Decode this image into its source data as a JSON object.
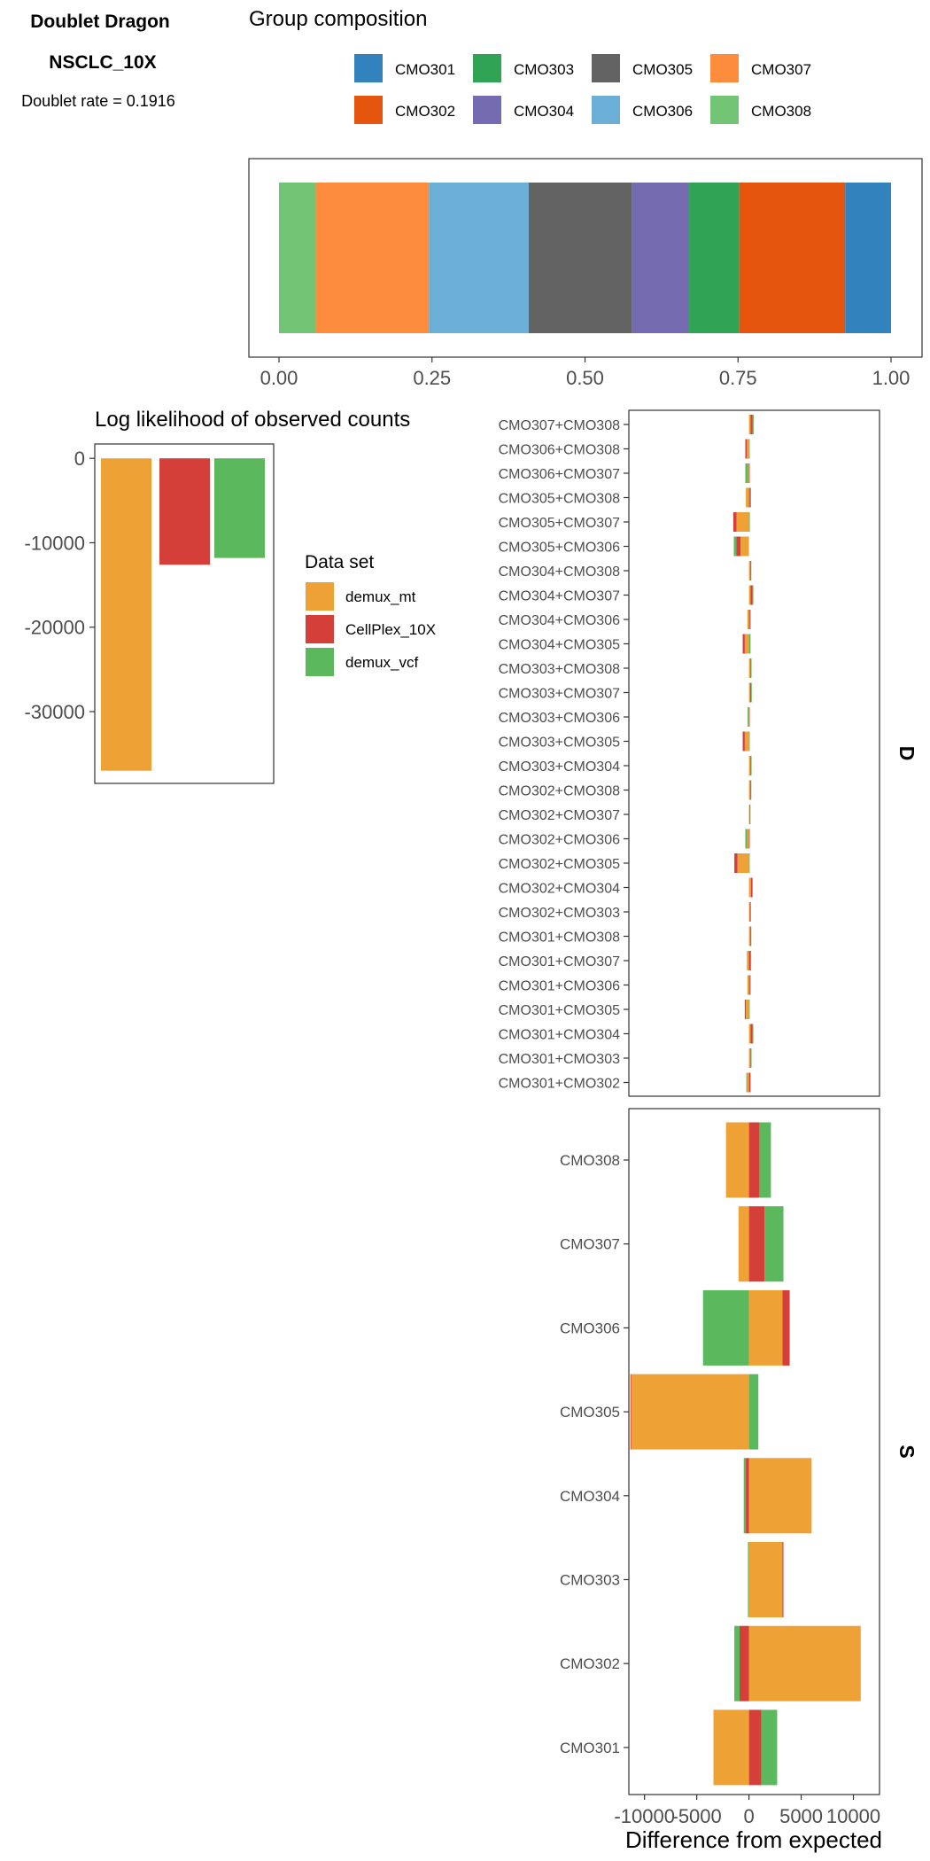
{
  "header": {
    "title": "Doublet Dragon",
    "dataset": "NSCLC_10X",
    "doublet_rate_label": "Doublet rate = 0.1916"
  },
  "colors": {
    "CMO301": "#3182bd",
    "CMO302": "#e6550d",
    "CMO303": "#31a354",
    "CMO304": "#756bb1",
    "CMO305": "#636363",
    "CMO306": "#6baed6",
    "CMO307": "#fd8d3c",
    "CMO308": "#74c476",
    "demux_mt": "#eea236",
    "CellPlex_10X": "#d43f3a",
    "demux_vcf": "#5cb85c"
  },
  "chart_data": [
    {
      "type": "bar",
      "orientation": "horizontal-stacked",
      "title": "Group composition",
      "legend": [
        "CMO301",
        "CMO303",
        "CMO305",
        "CMO307",
        "CMO302",
        "CMO304",
        "CMO306",
        "CMO308"
      ],
      "legend_position": "top",
      "xlim": [
        0,
        1
      ],
      "xticks": [
        "0.00",
        "0.25",
        "0.50",
        "0.75",
        "1.00"
      ],
      "segments": [
        {
          "group": "CMO308",
          "start": 0.0,
          "end": 0.06
        },
        {
          "group": "CMO307",
          "start": 0.06,
          "end": 0.245
        },
        {
          "group": "CMO306",
          "start": 0.245,
          "end": 0.408
        },
        {
          "group": "CMO305",
          "start": 0.408,
          "end": 0.577
        },
        {
          "group": "CMO304",
          "start": 0.577,
          "end": 0.67
        },
        {
          "group": "CMO303",
          "start": 0.67,
          "end": 0.752
        },
        {
          "group": "CMO302",
          "start": 0.752,
          "end": 0.925
        },
        {
          "group": "CMO301",
          "start": 0.925,
          "end": 1.0
        }
      ]
    },
    {
      "type": "bar",
      "title": "Log likelihood of observed counts",
      "categories": [
        "demux_mt",
        "CellPlex_10X",
        "demux_vcf"
      ],
      "values": [
        -37000,
        -12600,
        -11800
      ],
      "ylim": [
        -38500,
        1700
      ],
      "yticks": [
        "0",
        "-10000",
        "-20000",
        "-30000"
      ],
      "legend_title": "Data set",
      "legend": [
        "demux_mt",
        "CellPlex_10X",
        "demux_vcf"
      ],
      "legend_position": "right"
    },
    {
      "type": "bar",
      "orientation": "horizontal-stacked",
      "xlabel": "Difference from expected",
      "xlim": [
        -11500,
        12500
      ],
      "xticks": [
        "-10000",
        "-5000",
        "0",
        "5000",
        "10000"
      ],
      "panels": [
        {
          "strip": "D",
          "categories": [
            "CMO307+CMO308",
            "CMO306+CMO308",
            "CMO306+CMO307",
            "CMO305+CMO308",
            "CMO305+CMO307",
            "CMO305+CMO306",
            "CMO304+CMO308",
            "CMO304+CMO307",
            "CMO304+CMO306",
            "CMO304+CMO305",
            "CMO303+CMO308",
            "CMO303+CMO307",
            "CMO303+CMO306",
            "CMO303+CMO305",
            "CMO303+CMO304",
            "CMO302+CMO308",
            "CMO302+CMO307",
            "CMO302+CMO306",
            "CMO302+CMO305",
            "CMO302+CMO304",
            "CMO302+CMO303",
            "CMO301+CMO308",
            "CMO301+CMO307",
            "CMO301+CMO306",
            "CMO301+CMO305",
            "CMO301+CMO304",
            "CMO301+CMO303",
            "CMO301+CMO302"
          ],
          "series": [
            {
              "name": "demux_mt",
              "values": [
                150,
                -200,
                -100,
                -300,
                -1200,
                -800,
                100,
                150,
                -150,
                -400,
                120,
                100,
                -80,
                -400,
                120,
                100,
                50,
                -150,
                -1100,
                200,
                80,
                100,
                -200,
                -150,
                -300,
                150,
                100,
                -200
              ]
            },
            {
              "name": "CellPlex_10X",
              "values": [
                200,
                -150,
                50,
                100,
                -300,
                -400,
                60,
                200,
                100,
                -200,
                60,
                100,
                50,
                -200,
                50,
                60,
                30,
                50,
                -300,
                100,
                50,
                60,
                150,
                100,
                -100,
                200,
                80,
                150
              ]
            },
            {
              "name": "demux_vcf",
              "values": [
                100,
                50,
                -250,
                100,
                80,
                -250,
                60,
                50,
                50,
                150,
                40,
                40,
                -60,
                40,
                80,
                40,
                20,
                -200,
                50,
                50,
                40,
                40,
                60,
                50,
                40,
                60,
                40,
                -50
              ]
            }
          ]
        },
        {
          "strip": "S",
          "categories": [
            "CMO308",
            "CMO307",
            "CMO306",
            "CMO305",
            "CMO304",
            "CMO303",
            "CMO302",
            "CMO301"
          ],
          "series": [
            {
              "name": "demux_mt",
              "values": [
                -2200,
                -1000,
                3200,
                -11300,
                6000,
                3200,
                10700,
                -3400
              ]
            },
            {
              "name": "CellPlex_10X",
              "values": [
                1000,
                1500,
                700,
                -50,
                -300,
                100,
                -900,
                1200
              ]
            },
            {
              "name": "demux_vcf",
              "values": [
                1100,
                1800,
                -4400,
                900,
                -200,
                -100,
                -500,
                1500
              ]
            }
          ]
        }
      ]
    }
  ]
}
